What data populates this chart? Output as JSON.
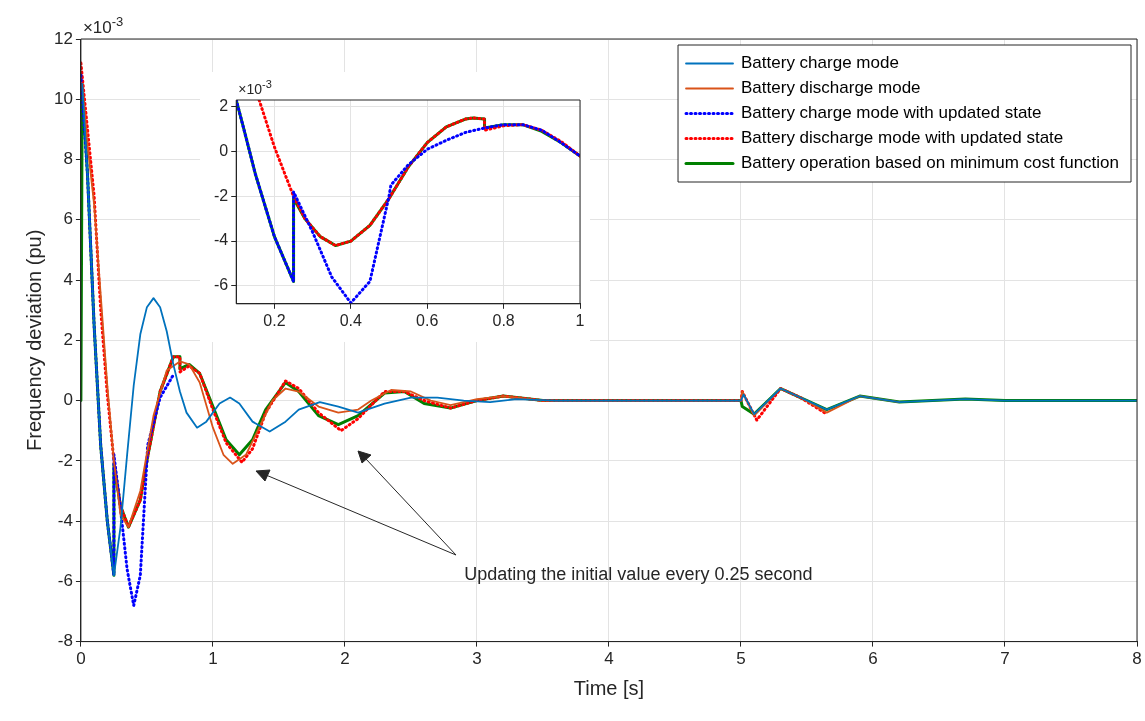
{
  "chart_data": [
    {
      "type": "line",
      "xlabel": "Time [s]",
      "ylabel": "Frequency deviation (pu)",
      "xlim": [
        0,
        8
      ],
      "xticks": [
        0,
        1,
        2,
        3,
        4,
        5,
        6,
        7,
        8
      ],
      "ylim": [
        -8,
        12
      ],
      "yticks": [
        -8,
        -6,
        -4,
        -2,
        0,
        2,
        4,
        6,
        8,
        10,
        12
      ],
      "grid": true,
      "legend": "top right",
      "annotations": [
        "×10$^{-3}$",
        "Updating the initial value every 0.25 second"
      ],
      "series": [
        {
          "name": "Battery charge mode",
          "color": "#0072bd",
          "line_style": "solid",
          "x": [
            0.01,
            0.05,
            0.1,
            0.15,
            0.2,
            0.25,
            0.3,
            0.35,
            0.4,
            0.45,
            0.5,
            0.55,
            0.6,
            0.65,
            0.7,
            0.75,
            0.8,
            0.88,
            0.95,
            1.05,
            1.13,
            1.2,
            1.3,
            1.43,
            1.55,
            1.65,
            1.81,
            1.95,
            2.1,
            2.3,
            2.5,
            2.7,
            2.9,
            3.1,
            3.3,
            3.6,
            4,
            5,
            5.02,
            5.1,
            5.3,
            5.45,
            5.65,
            5.9,
            6.2,
            6.7,
            7,
            8
          ],
          "values": [
            10.5,
            7.5,
            2.5,
            -1.5,
            -4,
            -5.8,
            -4.2,
            -1.8,
            0.5,
            2.2,
            3.1,
            3.4,
            3.1,
            2.3,
            1.2,
            0.3,
            -0.4,
            -0.9,
            -0.7,
            -0.1,
            0.1,
            -0.1,
            -0.7,
            -1.03,
            -0.7,
            -0.3,
            -0.05,
            -0.2,
            -0.4,
            -0.1,
            0.1,
            0.1,
            0,
            -0.05,
            0.05,
            0,
            0,
            0,
            0.2,
            -0.45,
            0.4,
            0.1,
            -0.3,
            0.15,
            -0.05,
            0.05,
            0,
            0
          ]
        },
        {
          "name": "Battery discharge mode",
          "color": "#d95319",
          "line_style": "solid",
          "x": [
            0.01,
            0.05,
            0.1,
            0.15,
            0.2,
            0.25,
            0.3,
            0.36,
            0.45,
            0.55,
            0.65,
            0.75,
            0.82,
            0.9,
            1.0,
            1.08,
            1.15,
            1.25,
            1.35,
            1.45,
            1.55,
            1.65,
            1.8,
            1.95,
            2.1,
            2.2,
            2.35,
            2.5,
            2.65,
            2.8,
            3.0,
            3.2,
            3.5,
            4,
            5,
            5.01,
            5.1,
            5.3,
            5.45,
            5.65,
            5.9,
            6.2
          ],
          "values": [
            10.5,
            8.5,
            6.5,
            3.5,
            0.5,
            -2,
            -3.8,
            -4.2,
            -3,
            -0.5,
            1,
            1.3,
            1.2,
            0.6,
            -0.9,
            -1.8,
            -2.1,
            -1.8,
            -0.9,
            0,
            0.4,
            0.3,
            -0.2,
            -0.4,
            -0.3,
            0,
            0.35,
            0.3,
            0,
            -0.15,
            0.05,
            0.15,
            0,
            0,
            0,
            0.3,
            -0.5,
            0.4,
            0.1,
            -0.4,
            0.15,
            -0.05
          ]
        },
        {
          "name": "Battery charge mode with updated state",
          "color": "#0000ff",
          "line_style": "dotted",
          "x": [
            0,
            0.05,
            0.1,
            0.15,
            0.2,
            0.25,
            0.2501,
            0.3,
            0.35,
            0.4,
            0.45,
            0.5,
            0.505,
            0.6,
            0.7
          ],
          "values": [
            10.8,
            7.5,
            2.5,
            -1.5,
            -4,
            -5.8,
            -1.8,
            -3.6,
            -5.6,
            -6.8,
            -5.8,
            -2,
            -1.5,
            0.1,
            0.85
          ]
        },
        {
          "name": "Battery discharge mode with updated state",
          "color": "#ff0000",
          "line_style": "dotted",
          "x": [
            0,
            0.05,
            0.1,
            0.15,
            0.2,
            0.25,
            0.3,
            0.36,
            0.45,
            0.5,
            0.6,
            0.7,
            0.75,
            0.751,
            0.82,
            0.9,
            1.0,
            1.1,
            1.22,
            1.3,
            1.4,
            1.55,
            1.65,
            1.8,
            1.97,
            2.1,
            2.3,
            2.45,
            2.6,
            2.8,
            3.0,
            3.2,
            3.5,
            4,
            5,
            5.01,
            5.12,
            5.3,
            5.45,
            5.65
          ],
          "values": [
            11.2,
            9,
            6.8,
            3,
            0.2,
            -2,
            -3.5,
            -4.2,
            -3.3,
            -2,
            0.3,
            1.45,
            1.45,
            0.95,
            1.15,
            0.9,
            -0.3,
            -1.4,
            -2.05,
            -1.6,
            -0.4,
            0.65,
            0.4,
            -0.4,
            -1.0,
            -0.6,
            0.3,
            0.3,
            0,
            -0.25,
            0,
            0.15,
            0,
            0,
            0,
            0.3,
            -0.65,
            0.4,
            0.1,
            -0.45
          ]
        },
        {
          "name": "Battery operation based on minimum cost function",
          "color": "#008000",
          "line_style": "solid",
          "x": [
            0,
            0.01,
            0.05,
            0.1,
            0.15,
            0.2,
            0.25,
            0.2501,
            0.3,
            0.36,
            0.45,
            0.5,
            0.6,
            0.7,
            0.75,
            0.7501,
            0.82,
            0.9,
            1.0,
            1.1,
            1.2,
            1.3,
            1.4,
            1.55,
            1.65,
            1.8,
            1.95,
            2.1,
            2.3,
            2.45,
            2.6,
            2.8,
            3.0,
            3.2,
            3.5,
            4,
            5,
            5.01,
            5.1,
            5.3,
            5.45,
            5.65,
            5.9,
            6.2,
            6.7,
            7,
            8
          ],
          "values": [
            0,
            10.5,
            7.5,
            2.5,
            -1.5,
            -4,
            -5.8,
            -2.1,
            -3.5,
            -4.2,
            -3.3,
            -2,
            0.3,
            1.45,
            1.45,
            1.05,
            1.2,
            0.9,
            -0.2,
            -1.3,
            -1.8,
            -1.3,
            -0.3,
            0.6,
            0.3,
            -0.5,
            -0.8,
            -0.5,
            0.25,
            0.3,
            -0.1,
            -0.25,
            0,
            0.15,
            0,
            0,
            0,
            -0.2,
            -0.45,
            0.4,
            0.1,
            -0.3,
            0.15,
            -0.05,
            0.05,
            0,
            0
          ]
        }
      ]
    },
    {
      "type": "line",
      "xlim": [
        0.1,
        1
      ],
      "xticks": [
        0.2,
        0.4,
        0.6,
        0.8,
        1
      ],
      "ylim": [
        -6.8,
        2.3
      ],
      "yticks": [
        -6,
        -4,
        -2,
        0,
        2
      ],
      "grid": true,
      "annotations": [
        "×10$^{-3}$"
      ],
      "series": [
        {
          "color": "#0000ff",
          "line_style": "dotted",
          "x": [
            0.1,
            0.12,
            0.15,
            0.2,
            0.25,
            0.2501,
            0.3,
            0.35,
            0.4,
            0.45,
            0.5,
            0.505,
            0.55,
            0.6,
            0.65,
            0.7,
            0.75,
            0.8,
            0.85,
            0.9,
            0.95,
            1.0
          ],
          "values": [
            2.3,
            1.0,
            -1.0,
            -3.8,
            -5.8,
            -1.8,
            -3.6,
            -5.6,
            -6.76,
            -5.8,
            -2.0,
            -1.5,
            -0.6,
            0.1,
            0.5,
            0.85,
            1.05,
            1.2,
            1.2,
            0.95,
            0.4,
            -0.2
          ]
        },
        {
          "color": "#ff0000",
          "line_style": "dotted",
          "x": [
            0.16,
            0.2,
            0.25,
            0.28,
            0.32,
            0.36,
            0.4,
            0.45,
            0.5,
            0.55,
            0.6,
            0.65,
            0.7,
            0.72,
            0.75,
            0.7501,
            0.8,
            0.85,
            0.9,
            0.95,
            1.0
          ],
          "values": [
            2.3,
            0.2,
            -2.0,
            -3.0,
            -3.8,
            -4.2,
            -4.0,
            -3.3,
            -2.1,
            -0.7,
            0.4,
            1.1,
            1.45,
            1.5,
            1.45,
            0.95,
            1.15,
            1.2,
            0.95,
            0.45,
            -0.2
          ]
        },
        {
          "color": "#008000",
          "line_style": "solid",
          "x": [
            0.1,
            0.12,
            0.15,
            0.2,
            0.25,
            0.2501,
            0.28,
            0.32,
            0.36,
            0.4,
            0.45,
            0.5,
            0.55,
            0.6,
            0.65,
            0.7,
            0.72,
            0.75,
            0.7501,
            0.8,
            0.85,
            0.9,
            0.95,
            1.0
          ],
          "values": [
            2.3,
            1.0,
            -1.0,
            -3.8,
            -5.8,
            -2.1,
            -3.0,
            -3.8,
            -4.2,
            -4.0,
            -3.3,
            -2.1,
            -0.7,
            0.4,
            1.1,
            1.45,
            1.5,
            1.45,
            1.05,
            1.2,
            1.2,
            0.9,
            0.4,
            -0.2
          ]
        }
      ]
    }
  ]
}
